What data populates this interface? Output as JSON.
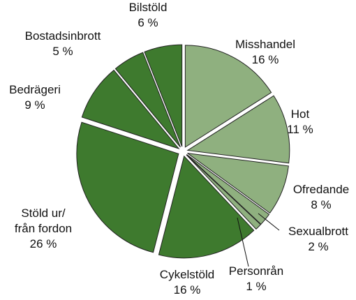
{
  "chart_data": {
    "type": "pie",
    "categories": [
      "Misshandel",
      "Hot",
      "Ofredande",
      "Sexualbrott",
      "Personrån",
      "Cykelstöld",
      "Stöld ur/\nfrån fordon",
      "Bedrägeri",
      "Bostadsinbrott",
      "Bilstöld"
    ],
    "values": [
      16,
      11,
      8,
      2,
      1,
      16,
      26,
      9,
      5,
      6
    ],
    "value_labels": [
      "16 %",
      "11 %",
      "8 %",
      "2 %",
      "1 %",
      "16 %",
      "26 %",
      "9 %",
      "5 %",
      "6 %"
    ],
    "colors": [
      "#8fb07f",
      "#8fb07f",
      "#8fb07f",
      "#8fb07f",
      "#8fb07f",
      "#3e7a2e",
      "#3e7a2e",
      "#3e7a2e",
      "#3e7a2e",
      "#3e7a2e"
    ]
  }
}
